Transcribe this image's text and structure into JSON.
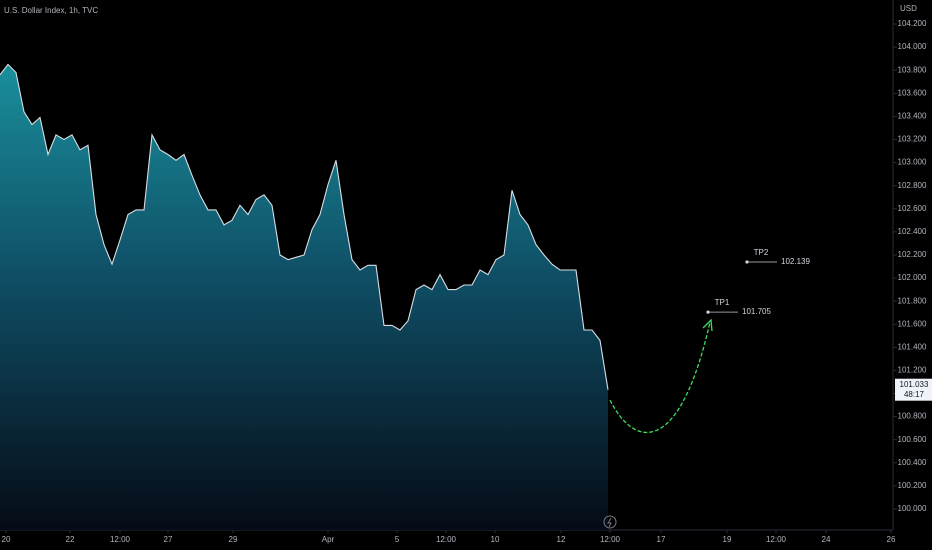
{
  "chart_data": {
    "type": "area",
    "title": "U.S. Dollar Index, 1h, TVC",
    "y_label": "USD",
    "color": "#d9dde3",
    "x": [
      0,
      2,
      4,
      6,
      8,
      10,
      12,
      14,
      16,
      18,
      20,
      22,
      24,
      26,
      28,
      30,
      32,
      34,
      36,
      38,
      40,
      42,
      44,
      46,
      48,
      50,
      52,
      54,
      56,
      58,
      60,
      62,
      64,
      66,
      68,
      70,
      72,
      74,
      76,
      78,
      80,
      82,
      84,
      86,
      88,
      90,
      92,
      94,
      96,
      98,
      100,
      102,
      104,
      106,
      108,
      110,
      112,
      114,
      116,
      118,
      120,
      122,
      124,
      126,
      128,
      130,
      132,
      134,
      136,
      138,
      140,
      142,
      144,
      146,
      148,
      150,
      152
    ],
    "values": [
      103.76,
      103.85,
      103.78,
      103.44,
      103.33,
      103.39,
      103.07,
      103.24,
      103.2,
      103.24,
      103.11,
      103.15,
      102.55,
      102.29,
      102.12,
      102.33,
      102.55,
      102.59,
      102.59,
      103.24,
      103.11,
      103.07,
      103.02,
      103.07,
      102.89,
      102.72,
      102.59,
      102.59,
      102.46,
      102.5,
      102.63,
      102.55,
      102.68,
      102.72,
      102.63,
      102.2,
      102.16,
      102.18,
      102.2,
      102.42,
      102.55,
      102.81,
      103.02,
      102.55,
      102.16,
      102.07,
      102.11,
      102.11,
      101.59,
      101.59,
      101.55,
      101.63,
      101.9,
      101.94,
      101.9,
      102.03,
      101.9,
      101.9,
      101.94,
      101.94,
      102.07,
      102.03,
      102.16,
      102.2,
      102.76,
      102.55,
      102.46,
      102.29,
      102.2,
      102.12,
      102.07,
      102.07,
      102.07,
      101.55,
      101.55,
      101.46,
      101.033
    ],
    "countdown": "48:17",
    "xlim": [
      0,
      233
    ],
    "xticks": [
      {
        "value": 1.5,
        "label": "20"
      },
      {
        "value": 17.5,
        "label": "22"
      },
      {
        "value": 30,
        "label": "12:00"
      },
      {
        "value": 42,
        "label": "27"
      },
      {
        "value": 58.25,
        "label": "29"
      },
      {
        "value": 82,
        "label": "Apr"
      },
      {
        "value": 99.25,
        "label": "5"
      },
      {
        "value": 111.5,
        "label": "12:00"
      },
      {
        "value": 123.75,
        "label": "10"
      },
      {
        "value": 140.25,
        "label": "12"
      },
      {
        "value": 152.5,
        "label": "12:00"
      },
      {
        "value": 165.25,
        "label": "17"
      },
      {
        "value": 181.75,
        "label": "19"
      },
      {
        "value": 194,
        "label": "12:00"
      },
      {
        "value": 206.5,
        "label": "24"
      },
      {
        "value": 222.75,
        "label": "26"
      }
    ],
    "ylim": [
      99.818,
      104.408
    ],
    "yticks": [
      {
        "value": 100,
        "label": "100.000"
      },
      {
        "value": 100.2,
        "label": "100.200"
      },
      {
        "value": 100.4,
        "label": "100.400"
      },
      {
        "value": 100.6,
        "label": "100.600"
      },
      {
        "value": 100.8,
        "label": "100.800"
      },
      {
        "value": 101,
        "label": "101.000"
      },
      {
        "value": 101.2,
        "label": "101.200"
      },
      {
        "value": 101.4,
        "label": "101.400"
      },
      {
        "value": 101.6,
        "label": "101.600"
      },
      {
        "value": 101.8,
        "label": "101.800"
      },
      {
        "value": 102,
        "label": "102.000"
      },
      {
        "value": 102.2,
        "label": "102.200"
      },
      {
        "value": 102.4,
        "label": "102.400"
      },
      {
        "value": 102.6,
        "label": "102.600"
      },
      {
        "value": 102.8,
        "label": "102.800"
      },
      {
        "value": 103,
        "label": "103.000"
      },
      {
        "value": 103.2,
        "label": "103.200"
      },
      {
        "value": 103.4,
        "label": "103.400"
      },
      {
        "value": 103.6,
        "label": "103.600"
      },
      {
        "value": 103.8,
        "label": "103.800"
      },
      {
        "value": 104,
        "label": "104.000"
      },
      {
        "value": 104.2,
        "label": "104.200"
      }
    ],
    "annotations": [
      {
        "label": "TP1",
        "x": 177,
        "value": 101.705
      },
      {
        "label": "TP2",
        "x": 186.75,
        "value": 102.139
      }
    ]
  }
}
